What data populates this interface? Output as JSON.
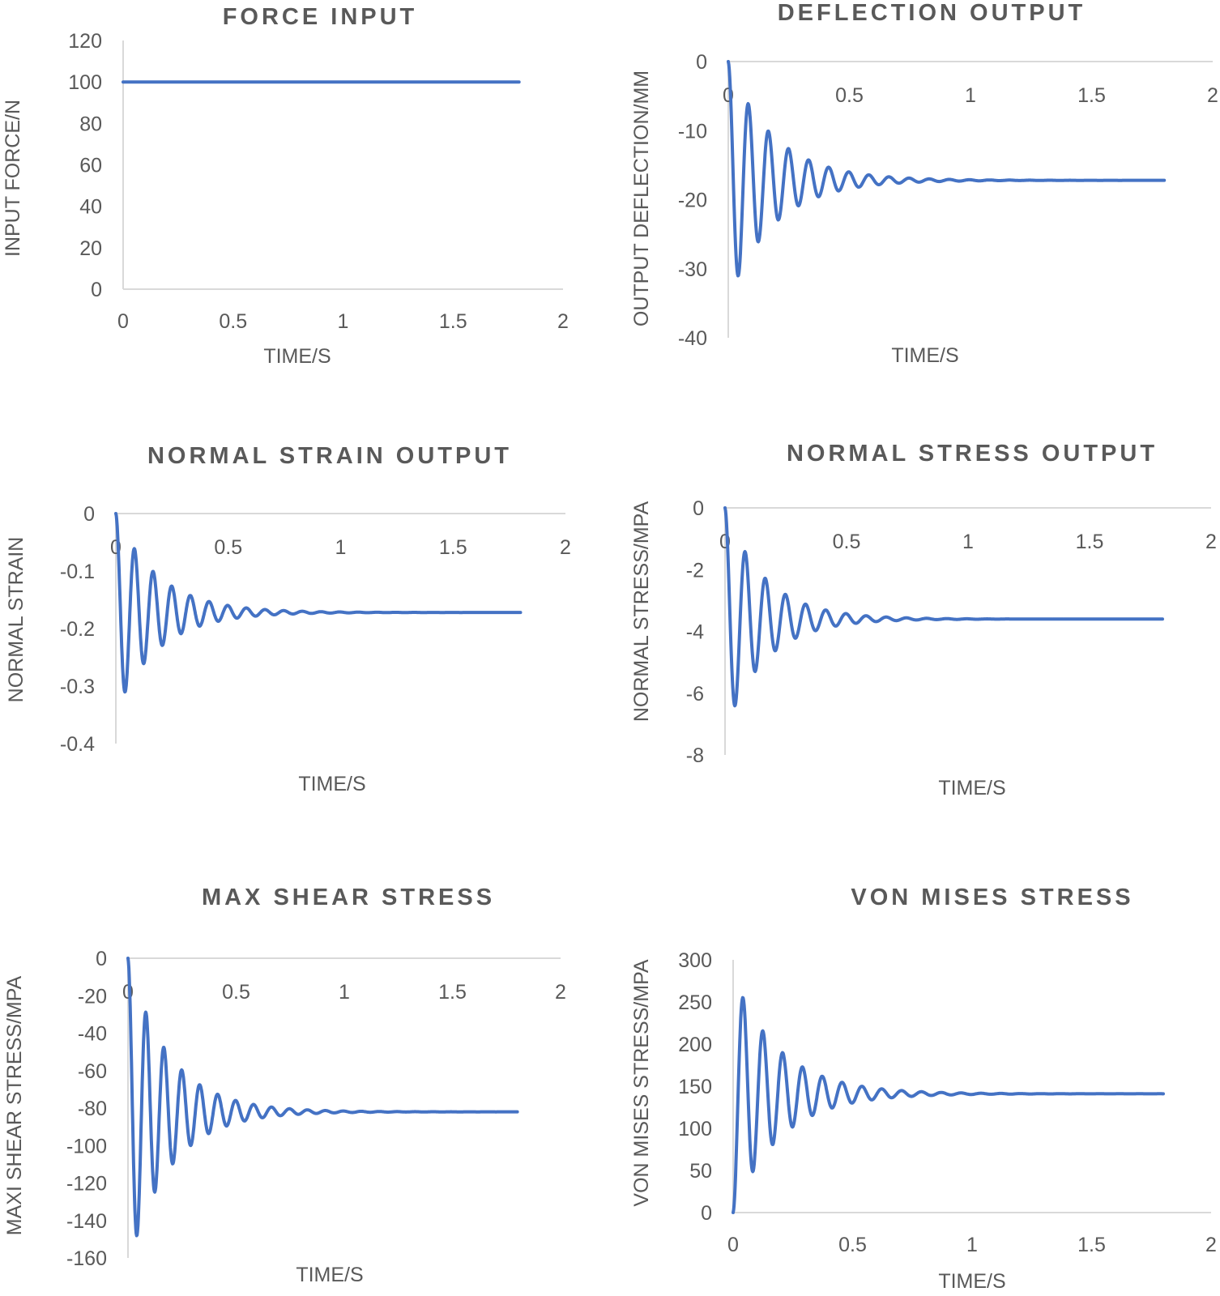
{
  "colors": {
    "series": "#4472c4",
    "axis": "#d9d9d9",
    "text": "#595959"
  },
  "chart_data": [
    {
      "id": "force",
      "type": "line",
      "title": "FORCE INPUT",
      "xlabel": "TIME/S",
      "ylabel": "INPUT FORCE/N",
      "xlim": [
        0,
        2
      ],
      "ylim": [
        0,
        120
      ],
      "xticks": [
        0,
        0.5,
        1,
        1.5,
        2
      ],
      "yticks": [
        0,
        20,
        40,
        60,
        80,
        100,
        120
      ],
      "grid": false,
      "series": [
        {
          "name": "Input force",
          "kind": "step",
          "final": 100,
          "t_end": 1.8
        }
      ]
    },
    {
      "id": "deflection",
      "type": "line",
      "title": "DEFLECTION OUTPUT",
      "xlabel": "TIME/S",
      "ylabel": "OUTPUT DEFLECTION/MM",
      "xlim": [
        0,
        2
      ],
      "ylim": [
        -40,
        0
      ],
      "xticks": [
        0,
        0.5,
        1,
        1.5,
        2
      ],
      "yticks": [
        0,
        -10,
        -20,
        -30,
        -40
      ],
      "grid": false,
      "series": [
        {
          "name": "Deflection",
          "kind": "damped",
          "final": -17.2,
          "peak": -31,
          "period": 0.083,
          "t_end": 1.8
        }
      ]
    },
    {
      "id": "strain",
      "type": "line",
      "title": "NORMAL STRAIN OUTPUT",
      "xlabel": "TIME/S",
      "ylabel": "NORMAL STRAIN",
      "xlim": [
        0,
        2
      ],
      "ylim": [
        -0.4,
        0
      ],
      "xticks": [
        0,
        0.5,
        1,
        1.5,
        2
      ],
      "yticks": [
        0,
        -0.1,
        -0.2,
        -0.3,
        -0.4
      ],
      "grid": false,
      "series": [
        {
          "name": "Normal strain",
          "kind": "damped",
          "final": -0.172,
          "peak": -0.31,
          "period": 0.083,
          "t_end": 1.8
        }
      ]
    },
    {
      "id": "stress",
      "type": "line",
      "title": "NORMAL STRESS OUTPUT",
      "xlabel": "TIME/S",
      "ylabel": "NORMAL STRESS/MPA",
      "xlim": [
        0,
        2
      ],
      "ylim": [
        -8,
        0
      ],
      "xticks": [
        0,
        0.5,
        1,
        1.5,
        2
      ],
      "yticks": [
        0,
        -2,
        -4,
        -6,
        -8
      ],
      "grid": false,
      "series": [
        {
          "name": "Normal stress",
          "kind": "damped",
          "final": -3.6,
          "peak": -6.4,
          "period": 0.083,
          "t_end": 1.8
        }
      ]
    },
    {
      "id": "shear",
      "type": "line",
      "title": "MAX SHEAR STRESS",
      "xlabel": "TIME/S",
      "ylabel": "MAXI SHEAR STRESS/MPA",
      "xlim": [
        0,
        2
      ],
      "ylim": [
        -160,
        0
      ],
      "xticks": [
        0,
        0.5,
        1,
        1.5,
        2
      ],
      "yticks": [
        0,
        -20,
        -40,
        -60,
        -80,
        -100,
        -120,
        -140,
        -160
      ],
      "grid": false,
      "series": [
        {
          "name": "Max shear stress",
          "kind": "damped",
          "final": -82,
          "peak": -148,
          "period": 0.083,
          "t_end": 1.8
        }
      ]
    },
    {
      "id": "vonmises",
      "type": "line",
      "title": "VON MISES STRESS",
      "xlabel": "TIME/S",
      "ylabel": "VON MISES STRESS/MPA",
      "xlim": [
        0,
        2
      ],
      "ylim": [
        0,
        300
      ],
      "xticks": [
        0,
        0.5,
        1,
        1.5,
        2
      ],
      "yticks": [
        0,
        50,
        100,
        150,
        200,
        250,
        300
      ],
      "grid": false,
      "series": [
        {
          "name": "Von Mises stress",
          "kind": "damped",
          "final": 141,
          "peak": 255,
          "period": 0.083,
          "t_end": 1.8
        }
      ]
    }
  ]
}
